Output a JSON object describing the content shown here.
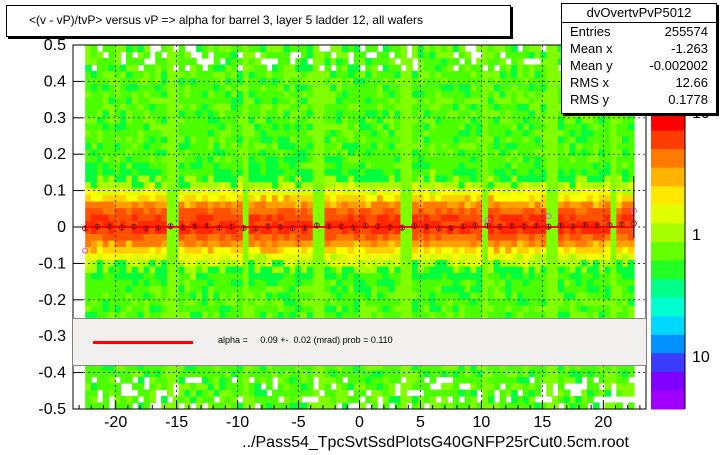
{
  "chart_data": {
    "type": "heatmap",
    "title": "<(v - vP)/tvP> versus   vP => alpha for barrel 3, layer 5 ladder 12, all wafers",
    "xlabel": "../Pass54_TpcSvtSsdPlotsG40GNFP25rCut0.5cm.root",
    "ylabel": "",
    "xlim": [
      -23.5,
      23.5
    ],
    "ylim": [
      -0.5,
      0.5
    ],
    "x_ticks": [
      "-20",
      "-15",
      "-10",
      "-5",
      "0",
      "5",
      "10",
      "15",
      "20"
    ],
    "y_ticks": [
      "0.5",
      "0.4",
      "0.3",
      "0.2",
      "0.1",
      "0",
      "-0.1",
      "-0.2",
      "-0.3",
      "-0.4",
      "-0.5"
    ],
    "colorbar_ticks": [
      "10",
      "1",
      "10"
    ],
    "grid": true,
    "profile_points": {
      "x": [
        -22.5,
        -21.5,
        -20.5,
        -19.5,
        -18.5,
        -17.5,
        -16.5,
        -15.5,
        -14.5,
        -13.5,
        -12.5,
        -11.5,
        -10.5,
        -9.5,
        -8.5,
        -7.5,
        -6.5,
        -5.5,
        -4.5,
        -3.5,
        -2.5,
        -1.5,
        -0.5,
        0.5,
        1.5,
        2.5,
        3.5,
        4.5,
        5.5,
        6.5,
        7.5,
        8.5,
        9.5,
        10.5,
        11.5,
        12.5,
        13.5,
        14.5,
        15.5,
        16.5,
        17.5,
        18.5,
        19.5,
        20.5,
        21.5,
        22.5
      ],
      "y": [
        -0.004,
        0.001,
        0.002,
        -0.002,
        0.001,
        -0.004,
        -0.003,
        0.002,
        -0.001,
        0.002,
        0.003,
        -0.002,
        0.001,
        -0.003,
        -0.004,
        0.002,
        0.001,
        -0.003,
        -0.002,
        0.004,
        0.002,
        0.001,
        -0.002,
        0.003,
        0.002,
        -0.001,
        -0.002,
        0.003,
        0.001,
        -0.004,
        -0.003,
        0.002,
        0.003,
        0.004,
        0.001,
        0.003,
        0.002,
        0.003,
        0.001,
        0.004,
        0.002,
        0.005,
        0.004,
        0.005,
        0.007,
        0.01
      ]
    },
    "outliers": {
      "x": [
        -22.5,
        10.5,
        15.5,
        22.5
      ],
      "y": [
        -0.065,
        0.018,
        0.03,
        0.045
      ]
    },
    "fit_line": {
      "slope": 0.0,
      "intercept": 0.0,
      "label": "alpha =     0.09 +-  0.02 (mrad) prob = 0.110"
    }
  },
  "stats": {
    "name": "dvOvertvPvP5012",
    "rows": [
      {
        "key": "Entries",
        "value": "255574"
      },
      {
        "key": "Mean x",
        "value": "-1.263"
      },
      {
        "key": "Mean y",
        "value": "-0.002002"
      },
      {
        "key": "RMS x",
        "value": "12.66"
      },
      {
        "key": "RMS y",
        "value": "0.1778"
      }
    ]
  },
  "colors": {
    "frame": "#000000",
    "fit_line": "#ff0000",
    "fit_band": "#f1f0ef",
    "points": "#cc0000"
  }
}
